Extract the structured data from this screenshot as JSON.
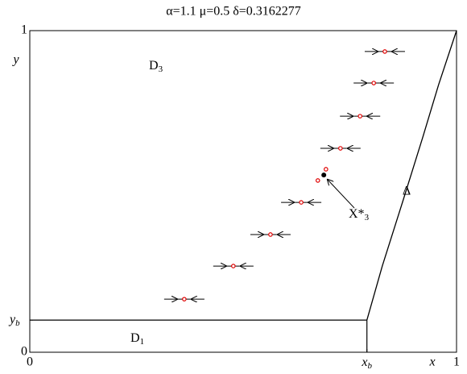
{
  "chart_data": {
    "type": "scatter",
    "title": "α=1.1  μ=0.5   δ=0.3162277",
    "xlabel": "x",
    "ylabel": "y",
    "xlim": [
      0,
      1
    ],
    "ylim": [
      0,
      1
    ],
    "xticks": [
      0,
      {
        "value": 0.79,
        "label": "x",
        "sub": "b"
      },
      1
    ],
    "yticks": [
      0,
      {
        "value": 0.1,
        "label": "y",
        "sub": "b"
      },
      1
    ],
    "curve": {
      "name": "Δ",
      "color": "#000000",
      "x": [
        0.79,
        0.826,
        0.874,
        0.921,
        0.958,
        1.0
      ],
      "values": [
        0.1,
        0.268,
        0.469,
        0.669,
        0.832,
        1.0
      ]
    },
    "equilibria": {
      "color": "#e00000",
      "x": [
        0.362,
        0.477,
        0.564,
        0.636,
        0.675,
        0.694,
        0.728,
        0.774,
        0.806,
        0.832
      ],
      "values": [
        0.165,
        0.268,
        0.366,
        0.466,
        0.534,
        0.569,
        0.634,
        0.734,
        0.837,
        0.935
      ]
    },
    "point": {
      "color": "#000000",
      "x": 0.689,
      "y": 0.551,
      "label": "X*",
      "sub": "3"
    },
    "regions": [
      {
        "label": "D",
        "sub": "3"
      },
      {
        "label": "D",
        "sub": "1"
      }
    ]
  }
}
